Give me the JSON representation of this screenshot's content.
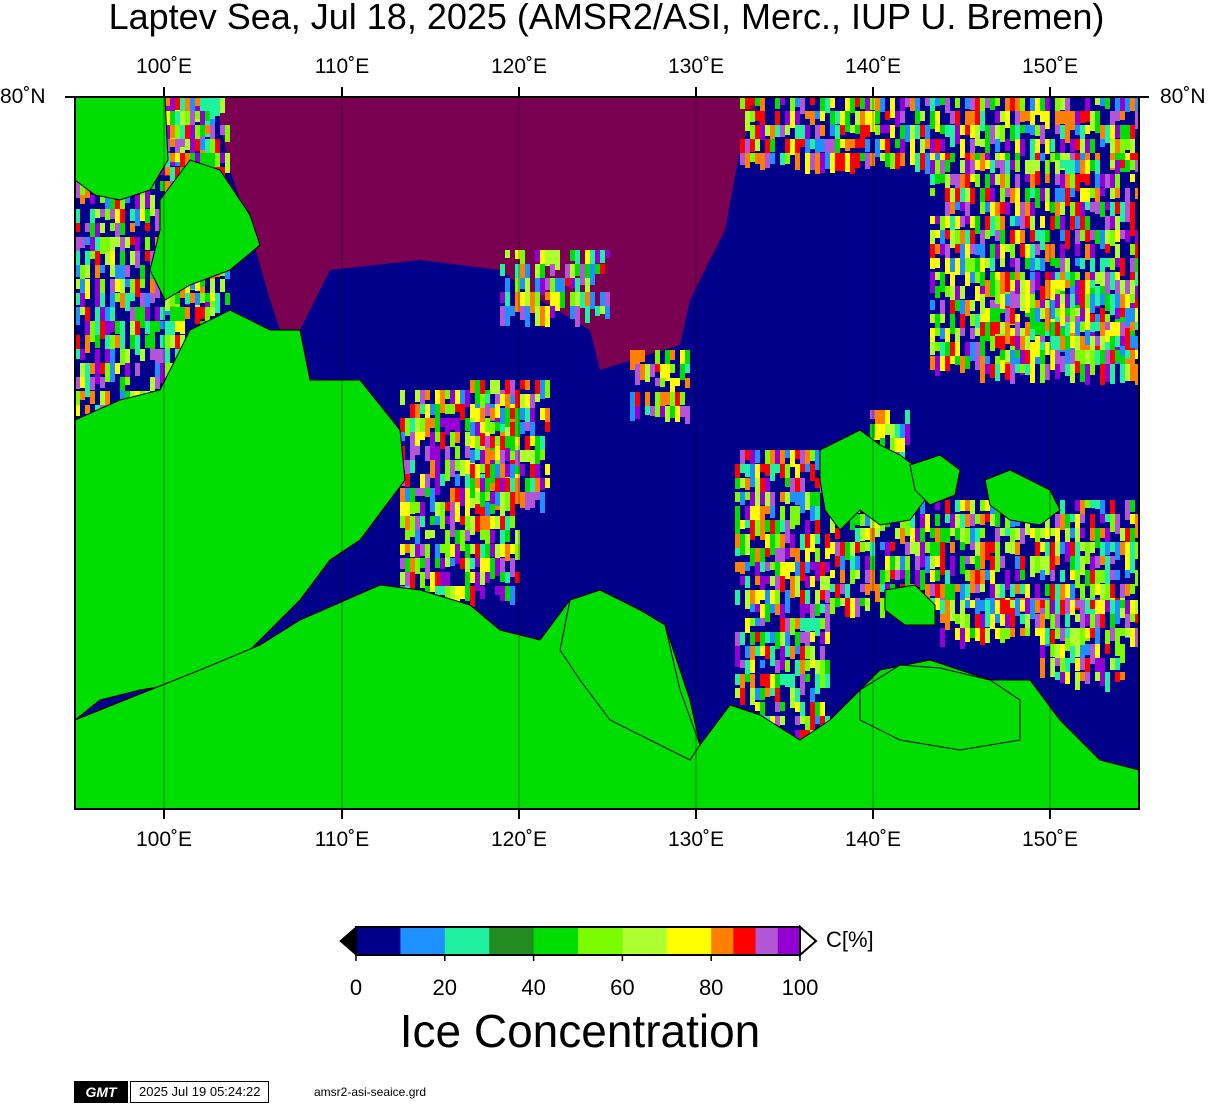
{
  "title": "Laptev Sea, Jul 18, 2025 (AMSR2/ASI, Merc., IUP U. Bremen)",
  "map": {
    "projection": "Mercator",
    "longitude_labels": [
      "100˚E",
      "110˚E",
      "120˚E",
      "130˚E",
      "140˚E",
      "150˚E"
    ],
    "latitude_labels": [
      "80˚N"
    ],
    "colors": {
      "land": "#00dd00",
      "open_water": "#00008b",
      "ice_100": "#7a0051"
    }
  },
  "colorbar": {
    "title": "Ice Concentration",
    "unit": "C[%]",
    "tick_labels": [
      "0",
      "20",
      "40",
      "60",
      "80",
      "100"
    ],
    "colors": [
      "#00008b",
      "#1e90ff",
      "#20f0a0",
      "#228b22",
      "#00dd00",
      "#7cfc00",
      "#adff2f",
      "#ffff00",
      "#ff8000",
      "#ff0000",
      "#b455d8",
      "#9400d3"
    ]
  },
  "footer": {
    "logo": "GMT",
    "timestamp": "2025 Jul 19 05:24:22",
    "filename": "amsr2-asi-seaice.grd"
  }
}
